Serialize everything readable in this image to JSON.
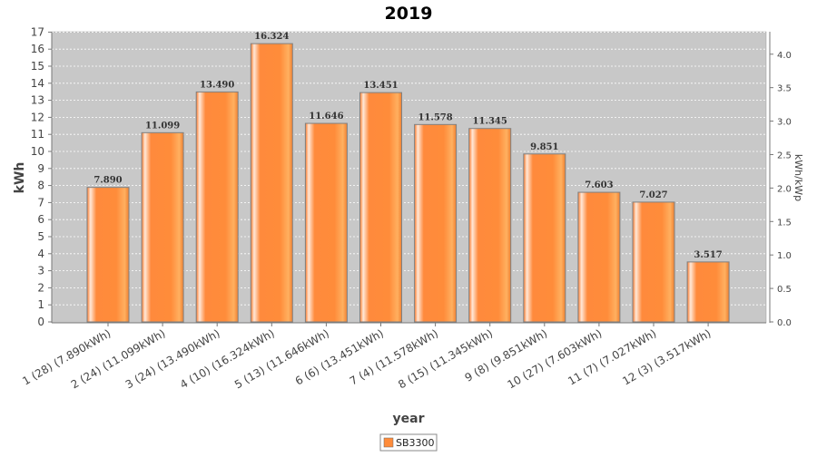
{
  "chart_data": {
    "type": "bar",
    "title": "2019",
    "xlabel": "year",
    "ylabel": "kWh",
    "y2label": "kWh/kWp",
    "ylim": [
      0,
      17
    ],
    "y2lim": [
      0,
      4.33
    ],
    "yticks": [
      0,
      1,
      2,
      3,
      4,
      5,
      6,
      7,
      8,
      9,
      10,
      11,
      12,
      13,
      14,
      15,
      16,
      17
    ],
    "y2ticks": [
      "0.0",
      "0.5",
      "1.0",
      "1.5",
      "2.0",
      "2.5",
      "3.0",
      "3.5",
      "4.0"
    ],
    "grid": true,
    "legend": "bottom-center",
    "categories": [
      "1 (28)  (7.890kWh)",
      "2 (24)  (11.099kWh)",
      "3 (24)  (13.490kWh)",
      "4 (10)  (16.324kWh)",
      "5 (13)  (11.646kWh)",
      "6 (6)  (13.451kWh)",
      "7 (4)  (11.578kWh)",
      "8 (15)  (11.345kWh)",
      "9 (8)  (9.851kWh)",
      "10 (27)  (7.603kWh)",
      "11 (7)  (7.027kWh)",
      "12 (3)  (3.517kWh)"
    ],
    "series": [
      {
        "name": "SB3300",
        "color": "#ff8c3a",
        "values": [
          7.89,
          11.099,
          13.49,
          16.324,
          11.646,
          13.451,
          11.578,
          11.345,
          9.851,
          7.603,
          7.027,
          3.517
        ],
        "labels": [
          "7.890",
          "11.099",
          "13.490",
          "16.324",
          "11.646",
          "13.451",
          "11.578",
          "11.345",
          "9.851",
          "7.603",
          "7.027",
          "3.517"
        ]
      }
    ]
  }
}
